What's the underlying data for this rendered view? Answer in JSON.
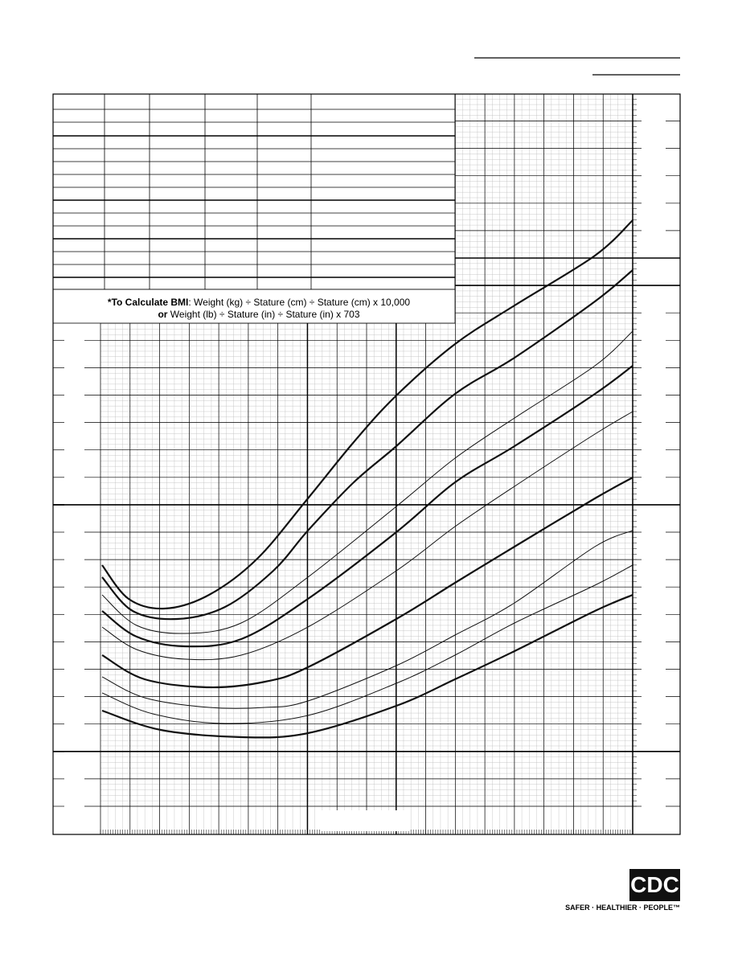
{
  "formula": {
    "line1_bold": "*To Calculate BMI",
    "line1_rest": ": Weight (kg) ÷ Stature (cm) ÷ Stature (cm) x 10,000",
    "line2_bold": "or",
    "line2_rest": " Weight (lb) ÷ Stature (in) ÷ Stature (in) x 703"
  },
  "logo": {
    "mark": "CDC",
    "tagline": "SAFER · HEALTHIER · PEOPLE™"
  }
}
